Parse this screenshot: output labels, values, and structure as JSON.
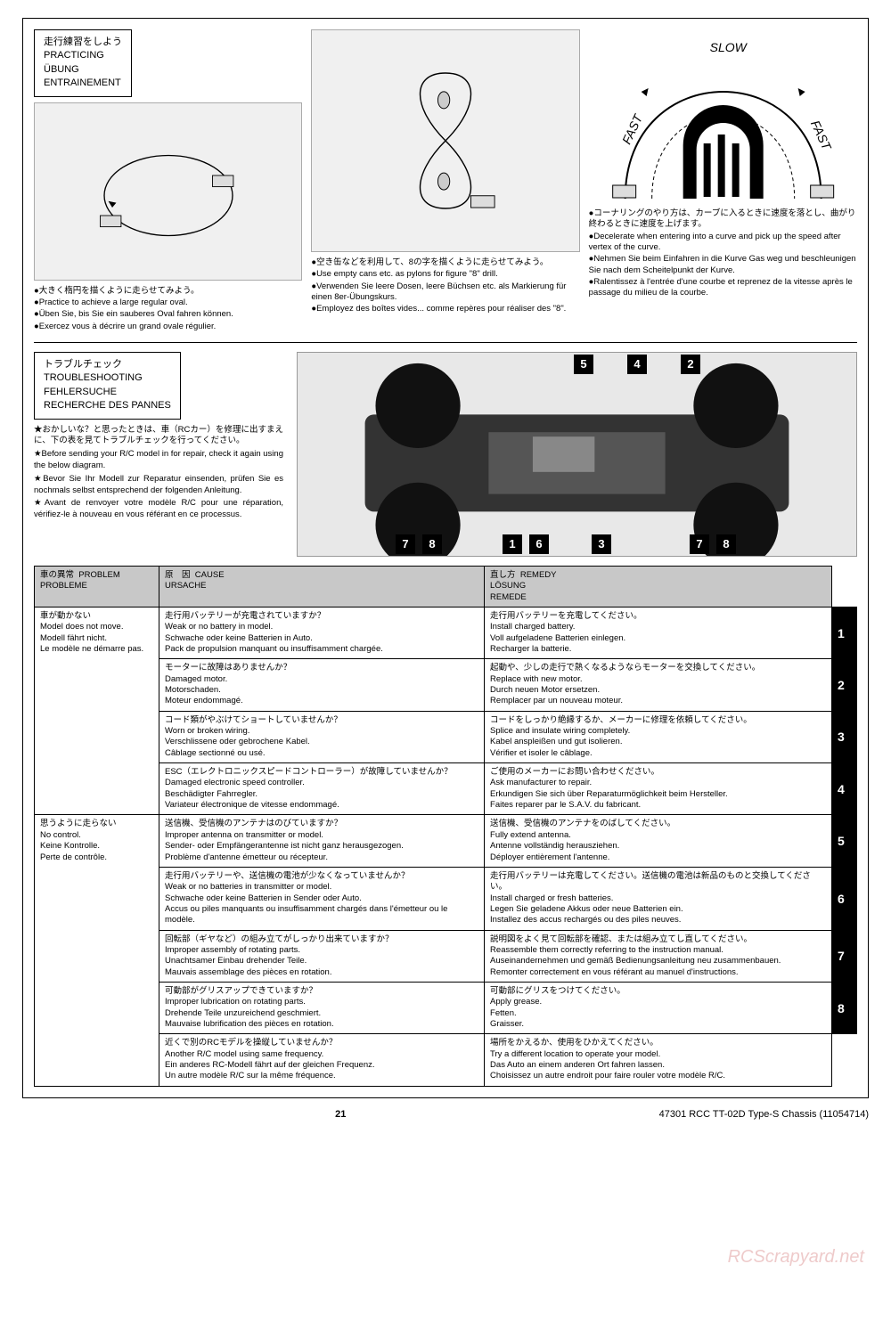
{
  "practicing_header": {
    "jp": "走行練習をしよう",
    "en": "PRACTICING",
    "de": "ÜBUNG",
    "fr": "ENTRAINEMENT"
  },
  "col1": {
    "jp": "●大きく楕円を描くように走らせてみよう。",
    "en": "●Practice to achieve a large regular oval.",
    "de": "●Üben Sie, bis Sie ein sauberes Oval fahren können.",
    "fr": "●Exercez vous à décrire un grand ovale régulier."
  },
  "col2": {
    "jp": "●空き缶などを利用して、8の字を描くように走らせてみよう。",
    "en": "●Use empty cans etc. as pylons for figure \"8\" drill.",
    "de": "●Verwenden Sie leere Dosen, leere Büchsen etc. als Markierung für einen 8er-Übungskurs.",
    "fr": "●Employez des boîtes vides... comme repères pour réaliser des \"8\"."
  },
  "col3": {
    "jp": "●コーナリングのやり方は、カーブに入るときに速度を落とし、曲がり終わるときに速度を上げます。",
    "en": "●Decelerate when entering into a curve and pick up the speed after vertex of the curve.",
    "de": "●Nehmen Sie beim Einfahren in die Kurve Gas weg und beschleunigen Sie nach dem Scheitelpunkt der Kurve.",
    "fr": "●Ralentissez à l'entrée d'une courbe et reprenez de la vitesse après le passage du milieu de la courbe."
  },
  "curve_labels": {
    "fast1": "FAST",
    "slow": "SLOW",
    "fast2": "FAST"
  },
  "troubleshoot_header": {
    "jp": "トラブルチェック",
    "en": "TROUBLESHOOTING",
    "de": "FEHLERSUCHE",
    "fr": "RECHERCHE DES PANNES"
  },
  "troubleshoot_intro": {
    "jp": "★おかしいな？と思ったときは、車（RCカー）を修理に出すまえに、下の表を見てトラブルチェックを行ってください。",
    "en": "★Before sending your R/C model in for repair, check it again using the below diagram.",
    "de": "★Bevor Sie Ihr Modell zur Reparatur einsenden, prüfen Sie es nochmals selbst entsprechend der folgenden Anleitung.",
    "fr": "★Avant de renvoyer votre modèle R/C pour une réparation, vérifiez-le à nouveau en vous référant en ce processus."
  },
  "chassis_numbers": [
    "5",
    "4",
    "2",
    "7",
    "8",
    "1",
    "6",
    "3",
    "7",
    "8"
  ],
  "table_headers": {
    "problem": {
      "jp": "車の異常",
      "en": "PROBLEM",
      "fr": "PROBLEME"
    },
    "cause": {
      "jp": "原　因",
      "en": "CAUSE",
      "de": "URSACHE"
    },
    "remedy": {
      "jp": "直し方",
      "en": "REMEDY",
      "de": "LÖSUNG",
      "fr": "REMEDE"
    }
  },
  "problems": [
    {
      "problem": {
        "jp": "車が動かない",
        "en": "Model does not move.",
        "de": "Modell fährt nicht.",
        "fr": "Le modèle ne démarre pas."
      },
      "rows": [
        {
          "cause": {
            "jp": "走行用バッテリーが充電されていますか？",
            "en": "Weak or no battery in model.",
            "de": "Schwache oder keine Batterien in Auto.",
            "fr": "Pack de propulsion manquant ou insuffisamment chargée."
          },
          "remedy": {
            "jp": "走行用バッテリーを充電してください。",
            "en": "Install charged battery.",
            "de": "Voll aufgeladene Batterien einlegen.",
            "fr": "Recharger la batterie."
          },
          "num": "1"
        },
        {
          "cause": {
            "jp": "モーターに故障はありませんか？",
            "en": "Damaged motor.",
            "de": "Motorschaden.",
            "fr": "Moteur endommagé."
          },
          "remedy": {
            "jp": "起動や、少しの走行で熱くなるようならモーターを交換してください。",
            "en": "Replace with new motor.",
            "de": "Durch neuen Motor ersetzen.",
            "fr": "Remplacer par un nouveau moteur."
          },
          "num": "2"
        },
        {
          "cause": {
            "jp": "コード類がやぶけてショートしていませんか？",
            "en": "Worn or broken wiring.",
            "de": "Verschlissene oder gebrochene Kabel.",
            "fr": "Câblage sectionné ou usé."
          },
          "remedy": {
            "jp": "コードをしっかり絶縁するか、メーカーに修理を依頼してください。",
            "en": "Splice and insulate wiring completely.",
            "de": "Kabel anspleißen und gut isolieren.",
            "fr": "Vérifier et isoler le câblage."
          },
          "num": "3"
        },
        {
          "cause": {
            "jp": "ESC（エレクトロニックスピードコントローラー）が故障していませんか？",
            "en": "Damaged electronic speed controller.",
            "de": "Beschädigter Fahrregler.",
            "fr": "Variateur électronique de vitesse endommagé."
          },
          "remedy": {
            "jp": "ご使用のメーカーにお問い合わせください。",
            "en": "Ask manufacturer to repair.",
            "de": "Erkundigen Sie sich über Reparaturmöglichkeit beim Hersteller.",
            "fr": "Faites reparer par le S.A.V. du fabricant."
          },
          "num": "4"
        }
      ]
    },
    {
      "problem": {
        "jp": "思うように走らない",
        "en": "No control.",
        "de": "Keine Kontrolle.",
        "fr": "Perte de contrôle."
      },
      "rows": [
        {
          "cause": {
            "jp": "送信機、受信機のアンテナはのびていますか？",
            "en": "Improper antenna on transmitter or model.",
            "de": "Sender- oder Empfängerantenne ist nicht ganz herausgezogen.",
            "fr": "Problème d'antenne émetteur ou récepteur."
          },
          "remedy": {
            "jp": "送信機、受信機のアンテナをのばしてください。",
            "en": "Fully extend antenna.",
            "de": "Antenne vollständig herausziehen.",
            "fr": "Déployer entièrement l'antenne."
          },
          "num": "5"
        },
        {
          "cause": {
            "jp": "走行用バッテリーや、送信機の電池が少なくなっていませんか？",
            "en": "Weak or no batteries in transmitter or model.",
            "de": "Schwache oder keine Batterien in Sender oder Auto.",
            "fr": "Accus ou piles manquants ou insuffisamment chargés dans l'émetteur ou le modèle."
          },
          "remedy": {
            "jp": "走行用バッテリーは充電してください。送信機の電池は新品のものと交換してください。",
            "en": "Install charged or fresh batteries.",
            "de": "Legen Sie geladene Akkus oder neue Batterien ein.",
            "fr": "Installez des accus rechargés ou des piles neuves."
          },
          "num": "6"
        },
        {
          "cause": {
            "jp": "回転部（ギヤなど）の組み立てがしっかり出来ていますか？",
            "en": "Improper assembly of rotating parts.",
            "de": "Unachtsamer Einbau drehender Teile.",
            "fr": "Mauvais assemblage des pièces en rotation."
          },
          "remedy": {
            "jp": "説明図をよく見て回転部を確認、または組み立てし直してください。",
            "en": "Reassemble them correctly referring to the instruction manual.",
            "de": "Auseinandernehmen und gemäß Bedienungsanleitung neu zusammenbauen.",
            "fr": "Remonter correctement en vous référant au manuel d'instructions."
          },
          "num": "7"
        },
        {
          "cause": {
            "jp": "可動部がグリスアップできていますか？",
            "en": "Improper lubrication on rotating parts.",
            "de": "Drehende Teile unzureichend geschmiert.",
            "fr": "Mauvaise lubrification des pièces en rotation."
          },
          "remedy": {
            "jp": "可動部にグリスをつけてください。",
            "en": "Apply grease.",
            "de": "Fetten.",
            "fr": "Graisser."
          },
          "num": "8"
        },
        {
          "cause": {
            "jp": "近くで別のRCモデルを操縦していませんか？",
            "en": "Another R/C model using same frequency.",
            "de": "Ein anderes RC-Modell fährt auf der gleichen Frequenz.",
            "fr": "Un autre modèle R/C sur la même fréquence."
          },
          "remedy": {
            "jp": "場所をかえるか、使用をひかえてください。",
            "en": "Try a different location to operate your model.",
            "de": "Das Auto an einem anderen Ort fahren lassen.",
            "fr": "Choisissez un autre endroit pour faire rouler votre modèle R/C."
          },
          "num": ""
        }
      ]
    }
  ],
  "footer": {
    "page": "21",
    "code": "47301 RCC TT-02D Type-S Chassis (11054714)"
  },
  "watermark": "RCScrapyard.net"
}
